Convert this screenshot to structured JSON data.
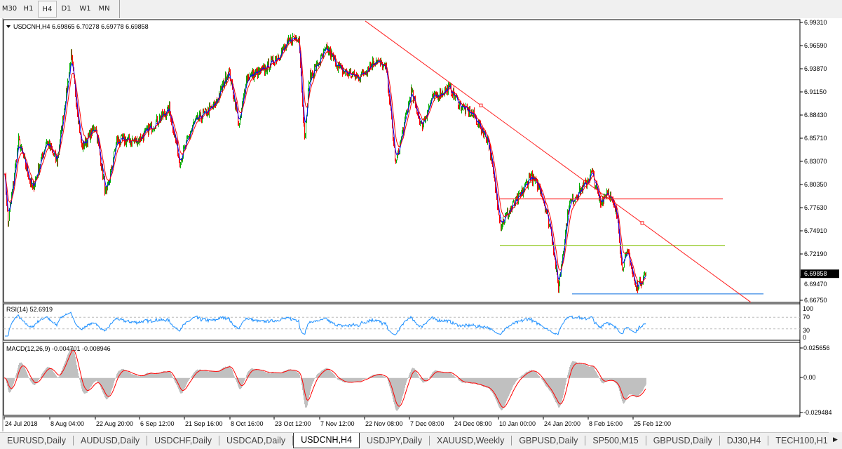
{
  "timeframes": [
    {
      "label": "M30"
    },
    {
      "label": "H1"
    },
    {
      "label": "H4",
      "selected": true
    },
    {
      "label": "D1"
    },
    {
      "label": "W1"
    },
    {
      "label": "MN"
    }
  ],
  "chart": {
    "symbol_info": "USDCNH,H4  6.69865 6.70278 6.69778 6.69858",
    "last_price": "6.69858",
    "price_axis": [
      "6.99310",
      "6.96590",
      "6.93870",
      "6.91150",
      "6.88430",
      "6.85710",
      "6.83070",
      "6.80350",
      "6.77630",
      "6.74910",
      "6.72190",
      "6.69470",
      "6.66750"
    ],
    "rsi_label": "RSI(14) 52.6919",
    "rsi_axis": [
      "100",
      "70",
      "30",
      "0"
    ],
    "macd_label": "MACD(12,26,9) -0.004701 -0.008946",
    "macd_axis": [
      "0.025656",
      "0.00",
      "-0.029484"
    ],
    "time_axis": [
      {
        "label": "24 Jul 2018",
        "bar": 0
      },
      {
        "label": "8 Aug 04:00",
        "bar": 65
      },
      {
        "label": "22 Aug 20:00",
        "bar": 130
      },
      {
        "label": "6 Sep 12:00",
        "bar": 193
      },
      {
        "label": "21 Sep 16:00",
        "bar": 257
      },
      {
        "label": "8 Oct 16:00",
        "bar": 322
      },
      {
        "label": "23 Oct 12:00",
        "bar": 385
      },
      {
        "label": "7 Nov 12:00",
        "bar": 450
      },
      {
        "label": "22 Nov 08:00",
        "bar": 514
      },
      {
        "label": "7 Dec 08:00",
        "bar": 578
      },
      {
        "label": "24 Dec 08:00",
        "bar": 641
      },
      {
        "label": "10 Jan 00:00",
        "bar": 705
      },
      {
        "label": "24 Jan 20:00",
        "bar": 769
      },
      {
        "label": "8 Feb 16:00",
        "bar": 833
      },
      {
        "label": "25 Feb 12:00",
        "bar": 897
      }
    ]
  },
  "chart_data": {
    "type": "candlestick",
    "price_range": [
      6.6675,
      6.9931
    ],
    "close_path": [
      [
        0,
        6.8217
      ],
      [
        5,
        6.7558
      ],
      [
        20,
        6.8547
      ],
      [
        40,
        6.797
      ],
      [
        60,
        6.8547
      ],
      [
        75,
        6.8299
      ],
      [
        95,
        6.9535
      ],
      [
        110,
        6.8464
      ],
      [
        130,
        6.8712
      ],
      [
        145,
        6.7887
      ],
      [
        160,
        6.8547
      ],
      [
        190,
        6.8547
      ],
      [
        210,
        6.8712
      ],
      [
        235,
        6.8918
      ],
      [
        250,
        6.8299
      ],
      [
        270,
        6.8753
      ],
      [
        300,
        6.8959
      ],
      [
        320,
        6.9371
      ],
      [
        335,
        6.8712
      ],
      [
        345,
        6.9288
      ],
      [
        370,
        6.9371
      ],
      [
        390,
        6.9535
      ],
      [
        410,
        6.9741
      ],
      [
        420,
        6.9766
      ],
      [
        428,
        6.8547
      ],
      [
        435,
        6.9288
      ],
      [
        460,
        6.9618
      ],
      [
        480,
        6.9371
      ],
      [
        505,
        6.9288
      ],
      [
        530,
        6.9494
      ],
      [
        545,
        6.9371
      ],
      [
        558,
        6.8258
      ],
      [
        580,
        6.9124
      ],
      [
        595,
        6.8712
      ],
      [
        610,
        6.9041
      ],
      [
        635,
        6.9165
      ],
      [
        650,
        6.8959
      ],
      [
        670,
        6.8835
      ],
      [
        690,
        6.8547
      ],
      [
        708,
        6.7558
      ],
      [
        720,
        6.7723
      ],
      [
        735,
        6.7887
      ],
      [
        750,
        6.8135
      ],
      [
        765,
        6.797
      ],
      [
        780,
        6.7475
      ],
      [
        790,
        6.6816
      ],
      [
        805,
        6.7805
      ],
      [
        830,
        6.8052
      ],
      [
        838,
        6.8176
      ],
      [
        850,
        6.7805
      ],
      [
        860,
        6.797
      ],
      [
        875,
        6.764
      ],
      [
        880,
        6.7063
      ],
      [
        890,
        6.7228
      ],
      [
        900,
        6.6816
      ],
      [
        915,
        6.6986
      ]
    ],
    "horizontal_lines": [
      {
        "price": 6.7863,
        "from_bar": 707,
        "to_bar": 1025,
        "color": "#ff3030"
      },
      {
        "price": 6.7319,
        "from_bar": 707,
        "to_bar": 1028,
        "color": "#9acd32"
      },
      {
        "price": 6.675,
        "from_bar": 810,
        "to_bar": 1083,
        "color": "#3c8ce6"
      }
    ],
    "trendline": {
      "from": [
        515,
        6.9948
      ],
      "to": [
        1065,
        6.6652
      ],
      "color": "#ff2020"
    },
    "colors": {
      "bull": "#00b000",
      "bear": "#ff0000",
      "ma_fast": "#0000ff",
      "ma_slow": "#ff0000",
      "rsi": "#1e90ff",
      "macd_hist": "#c0c0c0",
      "macd_signal": "#ff0000"
    },
    "rsi_levels": [
      70,
      30
    ],
    "macd_range": [
      -0.029484,
      0.025656
    ]
  },
  "tabs": [
    {
      "label": "EURUSD,Daily"
    },
    {
      "label": "AUDUSD,Daily"
    },
    {
      "label": "USDCHF,Daily"
    },
    {
      "label": "USDCAD,Daily"
    },
    {
      "label": "USDCNH,H4",
      "selected": true
    },
    {
      "label": "USDJPY,Daily"
    },
    {
      "label": "XAUUSD,Weekly"
    },
    {
      "label": "GBPUSD,Daily"
    },
    {
      "label": "SP500,M15"
    },
    {
      "label": "GBPUSD,Daily"
    },
    {
      "label": "DJ30,H4"
    },
    {
      "label": "TECH100,H1"
    }
  ]
}
